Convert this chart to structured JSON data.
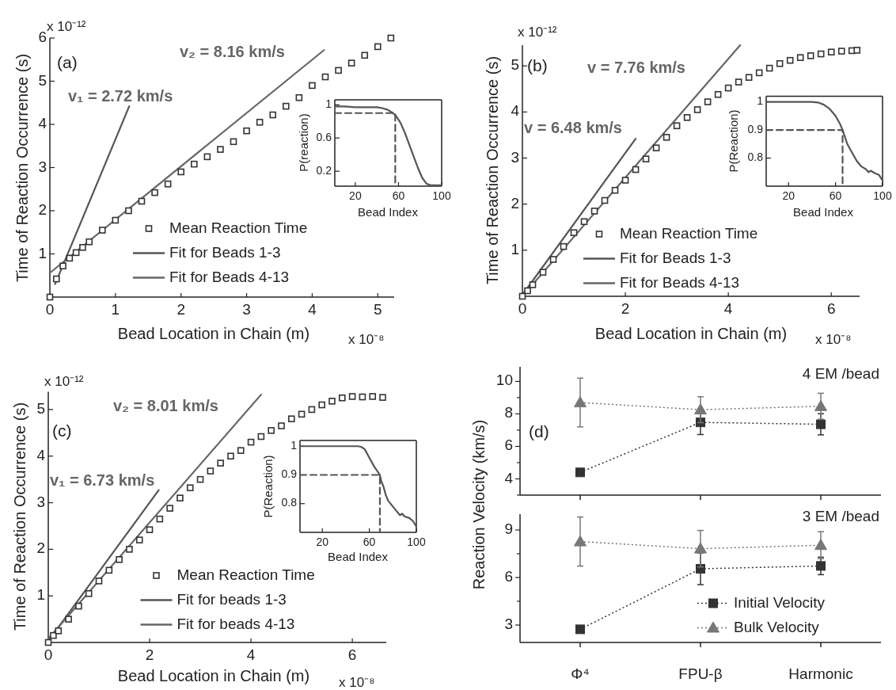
{
  "chart_data": [
    {
      "type": "scatter",
      "xlabel": "Bead Location in Chain (m)",
      "ylabel": "Time of Reaction Occurrence (s)",
      "annotations": [
        "(a)",
        "v₁ = 2.72 km/s",
        "v₂ = 8.16 km/s",
        "x 10⁻¹²",
        "x 10⁻⁸"
      ],
      "xlim": [
        0,
        5.25
      ],
      "ylim": [
        0,
        6
      ],
      "xticks": [
        0,
        1,
        2,
        3,
        4,
        5
      ],
      "yticks": [
        1,
        2,
        3,
        4,
        5,
        6
      ],
      "legend": "bottom",
      "series": [
        {
          "name": "Mean Reaction Time",
          "type": "scatter",
          "marker": "square",
          "color": "#333333",
          "x": [
            0,
            0.1,
            0.2,
            0.3,
            0.4,
            0.5,
            0.6,
            0.8,
            1.0,
            1.2,
            1.4,
            1.6,
            1.8,
            2.0,
            2.2,
            2.4,
            2.6,
            2.8,
            3.0,
            3.2,
            3.4,
            3.6,
            3.8,
            4.0,
            4.2,
            4.4,
            4.6,
            4.8,
            5.0,
            5.2
          ],
          "values": [
            0,
            0.42,
            0.72,
            0.9,
            1.03,
            1.15,
            1.28,
            1.55,
            1.78,
            2.0,
            2.22,
            2.42,
            2.62,
            2.9,
            3.08,
            3.25,
            3.42,
            3.6,
            3.85,
            4.05,
            4.22,
            4.42,
            4.62,
            4.9,
            5.1,
            5.25,
            5.42,
            5.6,
            5.8,
            6.0
          ]
        },
        {
          "name": "Fit for Beads 1-3",
          "type": "line",
          "color": "#555555",
          "x": [
            0.08,
            1.21
          ],
          "values": [
            0.3,
            4.42
          ]
        },
        {
          "name": "Fit for Beads 4-13",
          "type": "line",
          "color": "#666666",
          "x": [
            0,
            4.18
          ],
          "values": [
            0.56,
            5.72
          ]
        }
      ]
    },
    {
      "type": "line",
      "xlabel": "Bead Index",
      "ylabel": "P(reaction)",
      "xlim": [
        1,
        100
      ],
      "ylim": [
        0.02,
        1.06
      ],
      "xticks": [
        20,
        60,
        100
      ],
      "yticks": [
        0.2,
        0.6,
        1
      ],
      "series": [
        {
          "color": "#555555",
          "x": [
            1,
            10,
            20,
            30,
            40,
            45,
            50,
            55,
            58,
            62,
            66,
            70,
            74,
            78,
            82,
            86,
            90,
            95,
            100
          ],
          "values": [
            0.98,
            0.98,
            0.97,
            0.97,
            0.97,
            0.96,
            0.94,
            0.9,
            0.86,
            0.78,
            0.66,
            0.52,
            0.38,
            0.24,
            0.12,
            0.05,
            0.03,
            0.03,
            0.03
          ]
        },
        {
          "color": "#555555",
          "line_style": "dashed",
          "x": [
            1,
            57,
            57
          ],
          "values": [
            0.9,
            0.9,
            0.02
          ]
        }
      ]
    },
    {
      "type": "scatter",
      "xlabel": "Bead Location in Chain (m)",
      "ylabel": "Time of Reaction Occurrence (s)",
      "annotations": [
        "(b)",
        "v = 7.76 km/s",
        "v = 6.48 km/s",
        "x 10⁻¹²",
        "x 10⁻⁸"
      ],
      "xlim": [
        0,
        6.55
      ],
      "ylim": [
        0,
        5.45
      ],
      "xticks": [
        0,
        2,
        4,
        6
      ],
      "yticks": [
        1,
        2,
        3,
        4,
        5
      ],
      "legend": "bottom",
      "series": [
        {
          "name": "Mean Reaction Time",
          "type": "scatter",
          "marker": "square",
          "color": "#333333",
          "x": [
            0,
            0.1,
            0.2,
            0.4,
            0.6,
            0.8,
            1.0,
            1.2,
            1.4,
            1.6,
            1.8,
            2.0,
            2.2,
            2.4,
            2.6,
            2.8,
            3.0,
            3.2,
            3.4,
            3.6,
            3.8,
            4.0,
            4.2,
            4.4,
            4.6,
            4.8,
            5.0,
            5.2,
            5.4,
            5.6,
            5.8,
            6.0,
            6.2,
            6.4,
            6.5
          ],
          "values": [
            0,
            0.12,
            0.25,
            0.52,
            0.8,
            1.08,
            1.38,
            1.62,
            1.85,
            2.08,
            2.3,
            2.52,
            2.75,
            2.98,
            3.22,
            3.45,
            3.7,
            3.88,
            4.05,
            4.22,
            4.38,
            4.52,
            4.65,
            4.75,
            4.85,
            4.95,
            5.05,
            5.12,
            5.18,
            5.22,
            5.26,
            5.3,
            5.32,
            5.33,
            5.34
          ]
        },
        {
          "name": "Fit for Beads 1-3",
          "type": "line",
          "color": "#555555",
          "x": [
            0,
            2.2
          ],
          "values": [
            0.03,
            3.42
          ]
        },
        {
          "name": "Fit for Beads 4-13",
          "type": "line",
          "color": "#666666",
          "x": [
            0,
            4.23
          ],
          "values": [
            0,
            5.45
          ]
        }
      ]
    },
    {
      "type": "line",
      "xlabel": "Bead Index",
      "ylabel": "P(Reaction)",
      "xlim": [
        1,
        100
      ],
      "ylim": [
        0.7,
        1.02
      ],
      "xticks": [
        20,
        60,
        100
      ],
      "yticks": [
        0.8,
        0.9,
        1
      ],
      "series": [
        {
          "color": "#555555",
          "x": [
            1,
            20,
            40,
            45,
            50,
            55,
            60,
            64,
            66,
            68,
            70,
            74,
            78,
            82,
            86,
            88,
            90,
            94,
            97,
            100
          ],
          "values": [
            1,
            1,
            1,
            0.998,
            0.99,
            0.975,
            0.95,
            0.92,
            0.9,
            0.875,
            0.85,
            0.82,
            0.79,
            0.77,
            0.76,
            0.75,
            0.755,
            0.745,
            0.74,
            0.72
          ]
        },
        {
          "color": "#555555",
          "line_style": "dashed",
          "x": [
            1,
            66,
            66
          ],
          "values": [
            0.9,
            0.9,
            0.7
          ]
        }
      ]
    },
    {
      "type": "scatter",
      "xlabel": "Bead Location in Chain (m)",
      "ylabel": "Time of Reaction Occurrence (s)",
      "annotations": [
        "(c)",
        "v₂ = 8.01 km/s",
        "v₁ = 6.73 km/s",
        "x 10⁻¹²",
        "x 10⁻⁸"
      ],
      "xlim": [
        0,
        6.67
      ],
      "ylim": [
        0,
        5.38
      ],
      "xticks": [
        0,
        2,
        4,
        6
      ],
      "yticks": [
        1,
        2,
        3,
        4,
        5
      ],
      "legend": "bottom",
      "series": [
        {
          "name": "Mean Reaction Time",
          "type": "scatter",
          "marker": "square",
          "color": "#333333",
          "x": [
            0,
            0.1,
            0.2,
            0.4,
            0.6,
            0.8,
            1.0,
            1.2,
            1.4,
            1.6,
            1.8,
            2.0,
            2.2,
            2.4,
            2.6,
            2.8,
            3.0,
            3.2,
            3.4,
            3.6,
            3.8,
            4.0,
            4.2,
            4.4,
            4.6,
            4.8,
            5.0,
            5.2,
            5.4,
            5.6,
            5.8,
            6.0,
            6.2,
            6.4,
            6.6
          ],
          "values": [
            0,
            0.15,
            0.25,
            0.5,
            0.78,
            1.05,
            1.32,
            1.55,
            1.78,
            2.0,
            2.2,
            2.42,
            2.65,
            2.88,
            3.1,
            3.32,
            3.5,
            3.68,
            3.85,
            4.0,
            4.12,
            4.3,
            4.42,
            4.55,
            4.65,
            4.8,
            4.9,
            5.0,
            5.1,
            5.18,
            5.25,
            5.28,
            5.27,
            5.28,
            5.26
          ]
        },
        {
          "name": "Fit for beads 1-3",
          "type": "line",
          "color": "#555555",
          "x": [
            0,
            2.18
          ],
          "values": [
            0.03,
            3.27
          ]
        },
        {
          "name": "Fit for beads 4-13",
          "type": "line",
          "color": "#666666",
          "x": [
            0,
            4.2
          ],
          "values": [
            0.08,
            5.32
          ]
        }
      ]
    },
    {
      "type": "line",
      "xlabel": "Bead Index",
      "ylabel": "P(Reaction)",
      "xlim": [
        1,
        100
      ],
      "ylim": [
        0.7,
        1.02
      ],
      "xticks": [
        20,
        60,
        100
      ],
      "yticks": [
        0.8,
        0.9,
        1
      ],
      "series": [
        {
          "color": "#555555",
          "x": [
            1,
            20,
            40,
            50,
            53,
            56,
            60,
            64,
            69,
            70,
            72,
            74,
            76,
            80,
            84,
            86,
            88,
            90,
            94,
            97,
            100
          ],
          "values": [
            1,
            1,
            1,
            1,
            0.998,
            0.99,
            0.96,
            0.93,
            0.9,
            0.88,
            0.86,
            0.83,
            0.81,
            0.79,
            0.77,
            0.76,
            0.765,
            0.755,
            0.75,
            0.74,
            0.72
          ]
        },
        {
          "color": "#555555",
          "line_style": "dashed",
          "x": [
            1,
            69,
            69
          ],
          "values": [
            0.9,
            0.9,
            0.7
          ]
        }
      ]
    },
    {
      "type": "line",
      "ylabel": "Reaction Velocity (km/s)",
      "annotations": [
        "4 EM /bead",
        "(d)"
      ],
      "categories": [
        null,
        null,
        null
      ],
      "ylim": [
        3,
        10.9
      ],
      "yticks": [
        {
          "value": 3,
          "label": null
        },
        4,
        {
          "value": 5,
          "label": null
        },
        6,
        {
          "value": 7,
          "label": null
        },
        8,
        {
          "value": 9,
          "label": null
        },
        10
      ],
      "tick_labels": "y",
      "line_style": "dotted",
      "series": [
        {
          "marker": "square",
          "color": "#333333",
          "values": [
            4.4,
            7.48,
            7.36
          ],
          "errors": [
            0.2,
            0.75,
            0.65
          ]
        },
        {
          "marker": "triangle",
          "color": "#777777",
          "values": [
            8.7,
            8.26,
            8.47
          ],
          "errors": [
            1.5,
            0.8,
            0.8
          ]
        }
      ]
    },
    {
      "type": "line",
      "annotations": [
        "3 EM /bead"
      ],
      "categories": [
        "Φ⁴",
        "FPU-β",
        "Harmonic"
      ],
      "ylim": [
        1.9,
        10
      ],
      "yticks": [
        3,
        {
          "value": 4.5,
          "label": null
        },
        6,
        {
          "value": 7.5,
          "label": null
        },
        9
      ],
      "line_style": "dotted",
      "legend": "bottom right",
      "series": [
        {
          "name": "Initial Velocity",
          "marker": "square",
          "color": "#333333",
          "values": [
            2.73,
            6.55,
            6.73
          ],
          "errors": [
            null,
            1.0,
            0.55
          ]
        },
        {
          "name": "Bulk Velocity",
          "marker": "triangle",
          "color": "#777777",
          "values": [
            8.27,
            7.82,
            8.04
          ],
          "errors": [
            1.55,
            1.15,
            0.85
          ]
        }
      ]
    }
  ]
}
